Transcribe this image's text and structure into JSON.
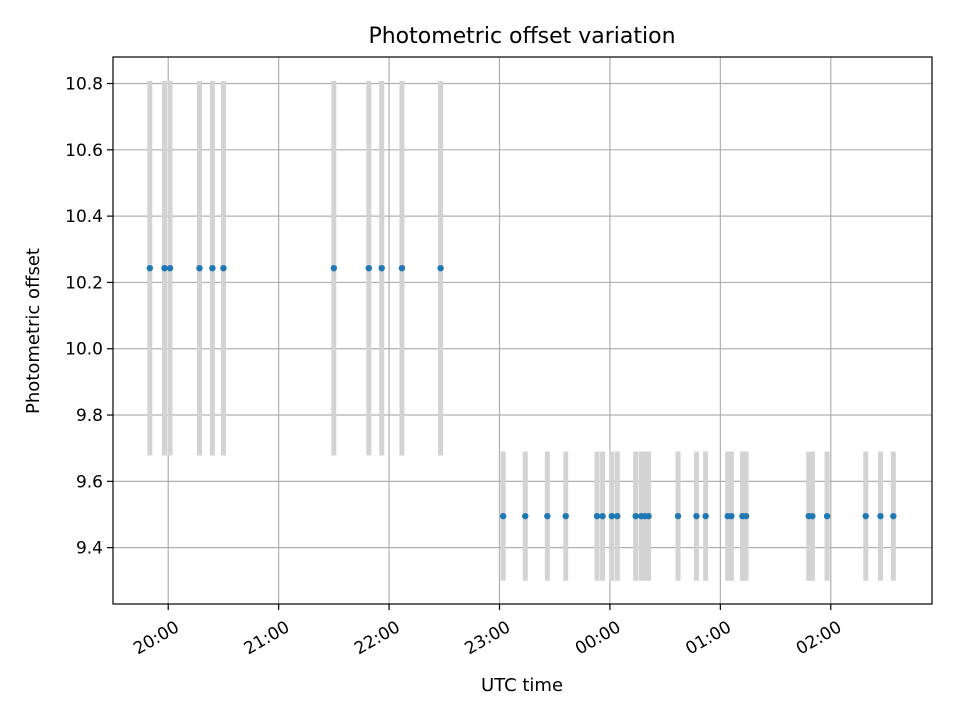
{
  "chart_data": {
    "type": "scatter",
    "title": "Photometric offset variation",
    "xlabel": "UTC time",
    "ylabel": "Photometric offset",
    "x_unit": "UTC clock time",
    "x_range": [
      "19:30",
      "02:55"
    ],
    "ylim": [
      9.23,
      10.88
    ],
    "grid": true,
    "x_ticks": [
      "20:00",
      "21:00",
      "22:00",
      "23:00",
      "00:00",
      "01:00",
      "02:00"
    ],
    "y_ticks": [
      "9.4",
      "9.6",
      "9.8",
      "10.0",
      "10.2",
      "10.4",
      "10.6",
      "10.8"
    ],
    "colors": {
      "marker": "#1f77b4",
      "errorbar": "#d3d3d3",
      "grid": "#b0b0b0"
    },
    "series": [
      {
        "y": 10.243,
        "yerr": 0.565,
        "x": [
          "19:50",
          "19:58",
          "20:01",
          "20:17",
          "20:24",
          "20:30",
          "21:30",
          "21:49",
          "21:56",
          "22:07",
          "22:28"
        ]
      },
      {
        "y": 9.495,
        "yerr": 0.195,
        "x": [
          "23:02",
          "23:14",
          "23:26",
          "23:36",
          "23:53",
          "23:56",
          "00:01",
          "00:04",
          "00:14",
          "00:17",
          "00:19",
          "00:21",
          "00:37",
          "00:47",
          "00:52",
          "01:04",
          "01:06",
          "01:12",
          "01:14",
          "01:48",
          "01:50",
          "01:58",
          "02:19",
          "02:27",
          "02:34"
        ]
      }
    ]
  }
}
